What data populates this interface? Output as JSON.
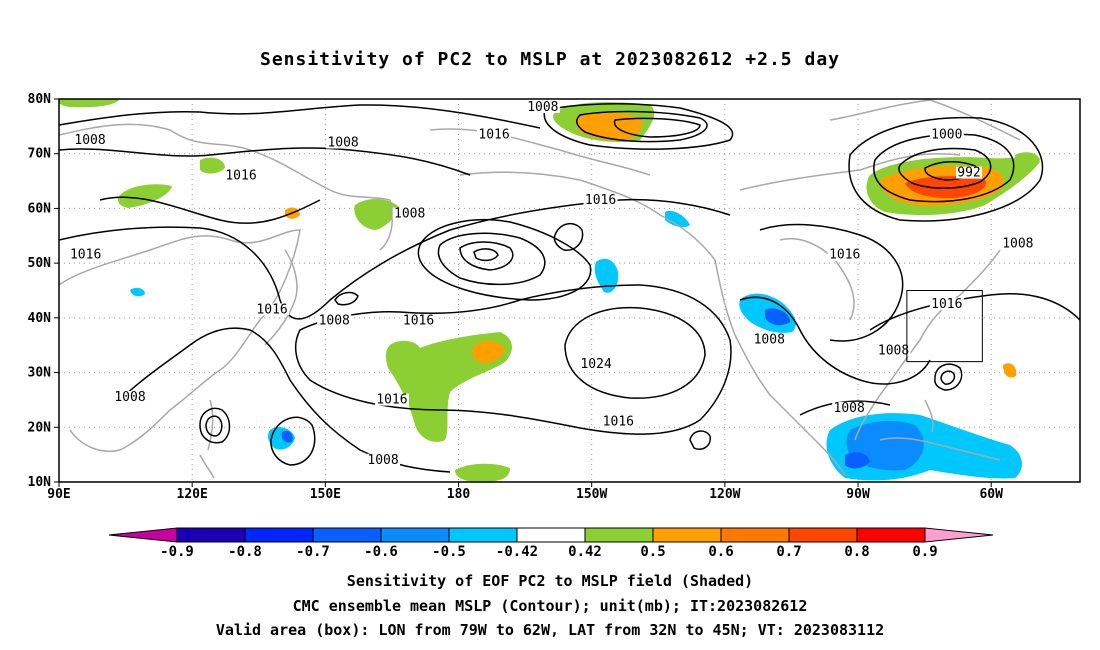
{
  "title": "Sensitivity of PC2 to MSLP at 2023082612 +2.5 day",
  "captions": [
    "Sensitivity of EOF PC2 to MSLP field (Shaded)",
    "CMC ensemble mean MSLP (Contour); unit(mb); IT:2023082612",
    "Valid area (box): LON from 79W to 62W, LAT from 32N to 45N; VT: 2023083112"
  ],
  "map": {
    "lon_range": [
      90,
      320
    ],
    "lat_range": [
      10,
      80
    ],
    "lon_ticks": [
      {
        "lon": 90,
        "label": "90E"
      },
      {
        "lon": 120,
        "label": "120E"
      },
      {
        "lon": 150,
        "label": "150E"
      },
      {
        "lon": 180,
        "label": "180"
      },
      {
        "lon": 210,
        "label": "150W"
      },
      {
        "lon": 240,
        "label": "120W"
      },
      {
        "lon": 270,
        "label": "90W"
      },
      {
        "lon": 300,
        "label": "60W"
      }
    ],
    "lat_ticks": [
      {
        "lat": 10,
        "label": "10N"
      },
      {
        "lat": 20,
        "label": "20N"
      },
      {
        "lat": 30,
        "label": "30N"
      },
      {
        "lat": 40,
        "label": "40N"
      },
      {
        "lat": 50,
        "label": "50N"
      },
      {
        "lat": 60,
        "label": "60N"
      },
      {
        "lat": 70,
        "label": "70N"
      },
      {
        "lat": 80,
        "label": "80N"
      }
    ],
    "grid": true,
    "valid_box": {
      "lon_min": 281,
      "lon_max": 298,
      "lat_min": 32,
      "lat_max": 45
    },
    "contour_labels": [
      {
        "lon": 97,
        "lat": 72,
        "text": "1008"
      },
      {
        "lon": 154,
        "lat": 71.5,
        "text": "1008"
      },
      {
        "lon": 131,
        "lat": 65.5,
        "text": "1016"
      },
      {
        "lon": 96,
        "lat": 51,
        "text": "1016"
      },
      {
        "lon": 169,
        "lat": 58.5,
        "text": "1008"
      },
      {
        "lon": 212,
        "lat": 61,
        "text": "1016"
      },
      {
        "lon": 199,
        "lat": 78,
        "text": "1008"
      },
      {
        "lon": 188,
        "lat": 73,
        "text": "1016"
      },
      {
        "lon": 290,
        "lat": 73,
        "text": "1000"
      },
      {
        "lon": 295,
        "lat": 66,
        "text": "992"
      },
      {
        "lon": 306,
        "lat": 53,
        "text": "1008"
      },
      {
        "lon": 267,
        "lat": 51,
        "text": "1016"
      },
      {
        "lon": 290,
        "lat": 42,
        "text": "1016"
      },
      {
        "lon": 138,
        "lat": 41,
        "text": "1016"
      },
      {
        "lon": 152,
        "lat": 39,
        "text": "1008"
      },
      {
        "lon": 171,
        "lat": 39,
        "text": "1016"
      },
      {
        "lon": 250,
        "lat": 35.5,
        "text": "1008"
      },
      {
        "lon": 278,
        "lat": 33.5,
        "text": "1008"
      },
      {
        "lon": 211,
        "lat": 31,
        "text": "1024"
      },
      {
        "lon": 165,
        "lat": 24.5,
        "text": "1016"
      },
      {
        "lon": 106,
        "lat": 25,
        "text": "1008"
      },
      {
        "lon": 216,
        "lat": 20.5,
        "text": "1016"
      },
      {
        "lon": 268,
        "lat": 23,
        "text": "1008"
      },
      {
        "lon": 163,
        "lat": 13.5,
        "text": "1008"
      }
    ]
  },
  "colorbar": {
    "labels": [
      "-0.9",
      "-0.8",
      "-0.7",
      "-0.6",
      "-0.5",
      "-0.42",
      "0.42",
      "0.5",
      "0.6",
      "0.7",
      "0.8",
      "0.9"
    ],
    "colors": [
      "#1a00b4",
      "#0026ff",
      "#0a5fff",
      "#0a8cff",
      "#00c8ff",
      "#ffffff",
      "#8ccf32",
      "#ffa000",
      "#ff7800",
      "#ff4600",
      "#ff0000"
    ],
    "low_arrow_color": "#c800a0",
    "high_arrow_color": "#ff9ecf"
  },
  "colors": {
    "land_outline": "#a8a8a8",
    "contour": "#000000"
  }
}
